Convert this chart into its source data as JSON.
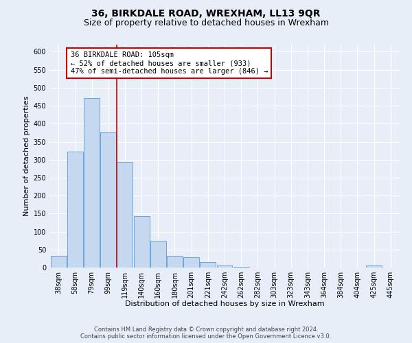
{
  "title": "36, BIRKDALE ROAD, WREXHAM, LL13 9QR",
  "subtitle": "Size of property relative to detached houses in Wrexham",
  "xlabel": "Distribution of detached houses by size in Wrexham",
  "ylabel": "Number of detached properties",
  "bar_labels": [
    "38sqm",
    "58sqm",
    "79sqm",
    "99sqm",
    "119sqm",
    "140sqm",
    "160sqm",
    "180sqm",
    "201sqm",
    "221sqm",
    "242sqm",
    "262sqm",
    "282sqm",
    "303sqm",
    "323sqm",
    "343sqm",
    "364sqm",
    "384sqm",
    "404sqm",
    "425sqm",
    "445sqm"
  ],
  "bar_heights": [
    32,
    323,
    472,
    375,
    293,
    144,
    75,
    32,
    29,
    16,
    5,
    2,
    0,
    0,
    0,
    0,
    0,
    0,
    0,
    5,
    0
  ],
  "bar_color": "#c5d8f0",
  "bar_edge_color": "#5b9bd5",
  "vline_x": 3.5,
  "vline_color": "#cc0000",
  "annotation_text": "36 BIRKDALE ROAD: 105sqm\n← 52% of detached houses are smaller (933)\n47% of semi-detached houses are larger (846) →",
  "annotation_box_color": "#ffffff",
  "annotation_box_edge": "#cc0000",
  "ylim": [
    0,
    620
  ],
  "yticks": [
    0,
    50,
    100,
    150,
    200,
    250,
    300,
    350,
    400,
    450,
    500,
    550,
    600
  ],
  "footer1": "Contains HM Land Registry data © Crown copyright and database right 2024.",
  "footer2": "Contains public sector information licensed under the Open Government Licence v3.0.",
  "bg_color": "#e8eef8",
  "plot_bg_color": "#e8eef8",
  "grid_color": "#ffffff",
  "title_fontsize": 10,
  "subtitle_fontsize": 9,
  "axis_label_fontsize": 8,
  "tick_fontsize": 7,
  "footer_fontsize": 6,
  "annotation_fontsize": 7.5
}
